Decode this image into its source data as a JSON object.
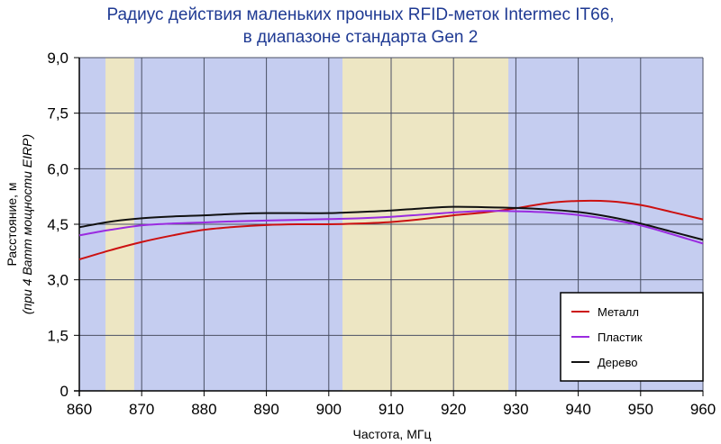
{
  "chart_data": {
    "type": "line",
    "title_lines": [
      "Радиус действия маленьких прочных RFID-меток Intermec IT66,",
      "в диапазоне стандарта Gen 2"
    ],
    "xlabel": "Частота, МГц",
    "ylabel": "Расстояние, м",
    "ylabel_sub": "(при 4 Ватт мощности EIRP)",
    "xlim": [
      860,
      960
    ],
    "ylim": [
      0,
      9
    ],
    "x_ticks": [
      860,
      870,
      880,
      890,
      900,
      910,
      920,
      930,
      940,
      950,
      960
    ],
    "y_ticks": [
      0,
      1.5,
      3.0,
      4.5,
      6.0,
      7.5,
      9.0
    ],
    "y_tick_labels": [
      "0",
      "1,5",
      "3,0",
      "4,5",
      "6,0",
      "7,5",
      "9,0"
    ],
    "grid": true,
    "background_color": "#c5cdf0",
    "highlight_bands": [
      {
        "x": [
          864.2,
          868.8
        ],
        "color": "#ede6c3"
      },
      {
        "x": [
          902.2,
          928.8
        ],
        "color": "#ede6c3"
      }
    ],
    "legend_position": "bottom-right",
    "series": [
      {
        "name": "Металл",
        "color": "#cc1111",
        "x": [
          860,
          865,
          870,
          875,
          880,
          885,
          890,
          895,
          900,
          905,
          910,
          915,
          920,
          925,
          930,
          935,
          940,
          945,
          950,
          955,
          960
        ],
        "values": [
          3.55,
          3.8,
          4.02,
          4.2,
          4.35,
          4.43,
          4.48,
          4.5,
          4.5,
          4.52,
          4.56,
          4.64,
          4.74,
          4.82,
          4.93,
          5.07,
          5.13,
          5.12,
          5.02,
          4.83,
          4.63
        ]
      },
      {
        "name": "Пластик",
        "color": "#9a2be0",
        "x": [
          860,
          865,
          870,
          875,
          880,
          885,
          890,
          895,
          900,
          905,
          910,
          915,
          920,
          925,
          930,
          935,
          940,
          945,
          950,
          955,
          960
        ],
        "values": [
          4.2,
          4.35,
          4.47,
          4.52,
          4.55,
          4.58,
          4.6,
          4.62,
          4.64,
          4.66,
          4.7,
          4.76,
          4.82,
          4.86,
          4.85,
          4.82,
          4.75,
          4.63,
          4.47,
          4.23,
          3.98
        ]
      },
      {
        "name": "Дерево",
        "color": "#111111",
        "x": [
          860,
          865,
          870,
          875,
          880,
          885,
          890,
          895,
          900,
          905,
          910,
          915,
          920,
          925,
          930,
          935,
          940,
          945,
          950,
          955,
          960
        ],
        "values": [
          4.42,
          4.57,
          4.66,
          4.71,
          4.74,
          4.78,
          4.8,
          4.8,
          4.8,
          4.83,
          4.87,
          4.93,
          4.97,
          4.96,
          4.94,
          4.9,
          4.83,
          4.7,
          4.52,
          4.3,
          4.08
        ]
      }
    ]
  }
}
